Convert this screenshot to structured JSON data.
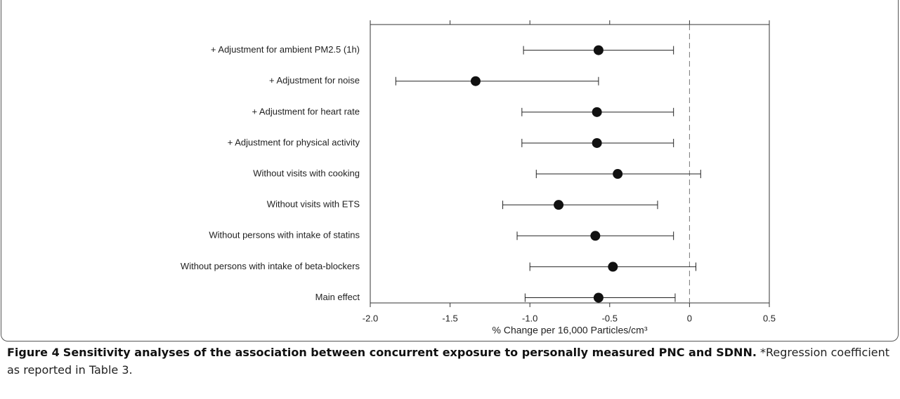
{
  "chart_data": {
    "type": "forest",
    "categories": [
      "+ Adjustment for ambient PM2.5 (1h)",
      "+ Adjustment for noise",
      "+ Adjustment for heart rate",
      "+ Adjustment for physical activity",
      "Without visits with cooking",
      "Without visits with ETS",
      "Without persons with intake of statins",
      "Without persons with intake of beta-blockers",
      "Main effect"
    ],
    "values": [
      -0.57,
      -1.34,
      -0.58,
      -0.58,
      -0.45,
      -0.82,
      -0.59,
      -0.48,
      -0.57
    ],
    "lower": [
      -1.04,
      -1.84,
      -1.05,
      -1.05,
      -0.96,
      -1.17,
      -1.08,
      -1.0,
      -1.03
    ],
    "upper": [
      -0.1,
      -0.57,
      -0.1,
      -0.1,
      0.07,
      -0.2,
      -0.1,
      0.04,
      -0.09
    ],
    "color": "#111111",
    "xlabel": "% Change per 16,000 Particles/cm³",
    "xlim": [
      -2.0,
      0.5
    ],
    "xticks": [
      {
        "value": -2.0,
        "label": "-2.0"
      },
      -1.5,
      {
        "value": -1.0,
        "label": "-1.0"
      },
      -0.5,
      0,
      0.5
    ],
    "reference_line": 0
  },
  "caption": {
    "label": "Figure 4",
    "title": "Sensitivity analyses of the association between concurrent exposure to personally measured PNC and SDNN.",
    "note": "*Regression coefficient as reported in Table 3."
  }
}
